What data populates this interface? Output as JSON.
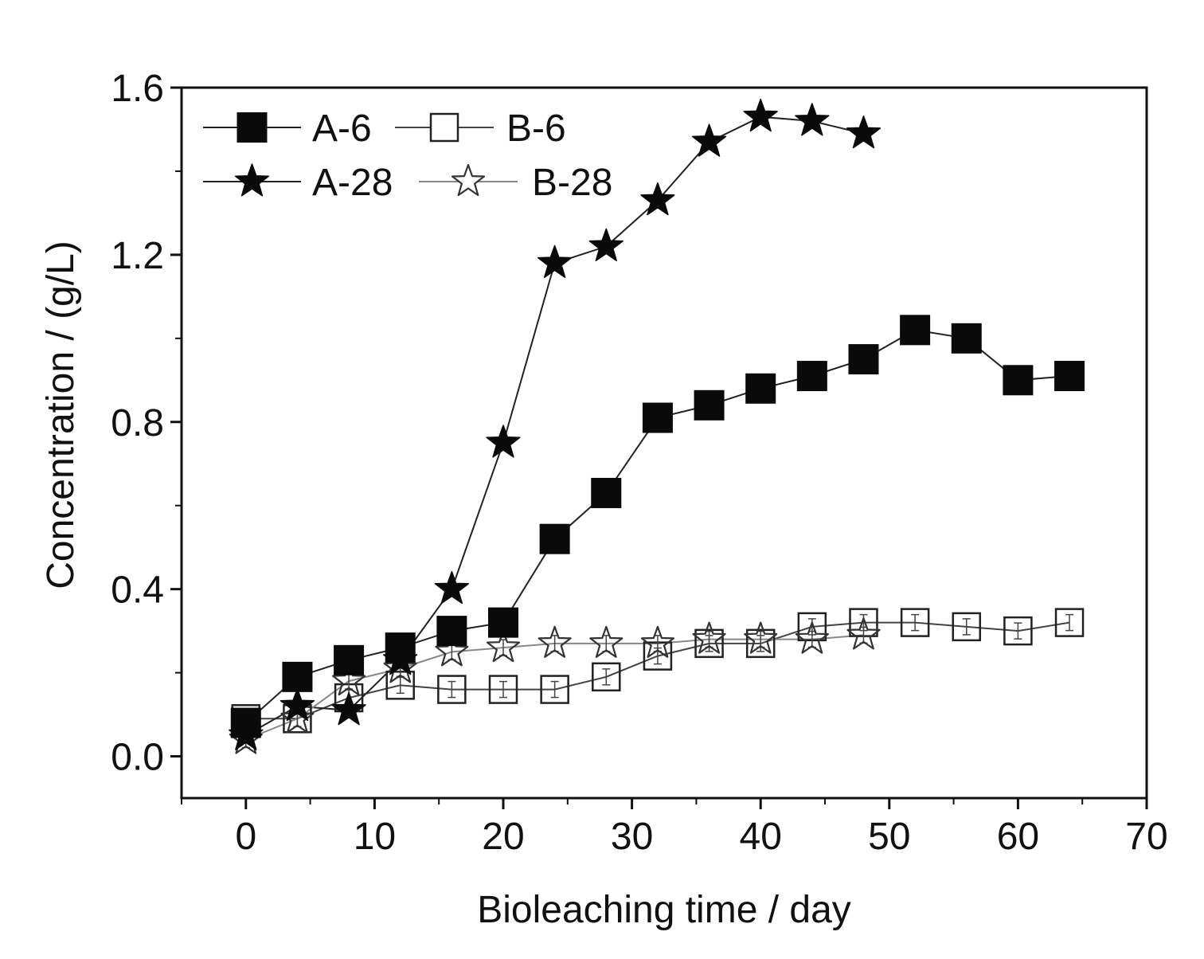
{
  "chart_data": {
    "type": "line",
    "title": "",
    "xlabel": "Bioleaching time / day",
    "ylabel": "Concentration / (g/L)",
    "xlim": [
      -5,
      70
    ],
    "ylim": [
      -0.1,
      1.6
    ],
    "xticks": [
      0,
      10,
      20,
      30,
      40,
      50,
      60,
      70
    ],
    "yticks": [
      0.0,
      0.4,
      0.8,
      1.2,
      1.6
    ],
    "xtick_labels": [
      "0",
      "10",
      "20",
      "30",
      "40",
      "50",
      "60",
      "70"
    ],
    "ytick_labels": [
      "0.0",
      "0.4",
      "0.8",
      "1.2",
      "1.6"
    ],
    "grid": false,
    "legend_position": "top-left",
    "series": [
      {
        "name": "A-6",
        "marker": "filled-square",
        "x": [
          0,
          4,
          8,
          12,
          16,
          20,
          24,
          28,
          32,
          36,
          40,
          44,
          48,
          52,
          56,
          60,
          64
        ],
        "y": [
          0.08,
          0.19,
          0.23,
          0.26,
          0.3,
          0.32,
          0.52,
          0.63,
          0.81,
          0.84,
          0.88,
          0.91,
          0.95,
          1.02,
          1.0,
          0.9,
          0.91
        ]
      },
      {
        "name": "B-6",
        "marker": "open-square",
        "x": [
          0,
          4,
          8,
          12,
          16,
          20,
          24,
          28,
          32,
          36,
          40,
          44,
          48,
          52,
          56,
          60,
          64
        ],
        "y": [
          0.09,
          0.09,
          0.14,
          0.17,
          0.16,
          0.16,
          0.16,
          0.19,
          0.24,
          0.27,
          0.27,
          0.31,
          0.32,
          0.32,
          0.31,
          0.3,
          0.32
        ]
      },
      {
        "name": "A-28",
        "marker": "filled-star",
        "x": [
          0,
          4,
          8,
          12,
          16,
          20,
          24,
          28,
          32,
          36,
          40,
          44,
          48
        ],
        "y": [
          0.05,
          0.12,
          0.11,
          0.23,
          0.4,
          0.75,
          1.18,
          1.22,
          1.33,
          1.47,
          1.53,
          1.52,
          1.49
        ]
      },
      {
        "name": "B-28",
        "marker": "open-star",
        "x": [
          0,
          4,
          8,
          12,
          16,
          20,
          24,
          28,
          32,
          36,
          40,
          44,
          48
        ],
        "y": [
          0.04,
          0.09,
          0.18,
          0.21,
          0.25,
          0.26,
          0.27,
          0.27,
          0.27,
          0.28,
          0.28,
          0.28,
          0.29
        ]
      }
    ]
  }
}
